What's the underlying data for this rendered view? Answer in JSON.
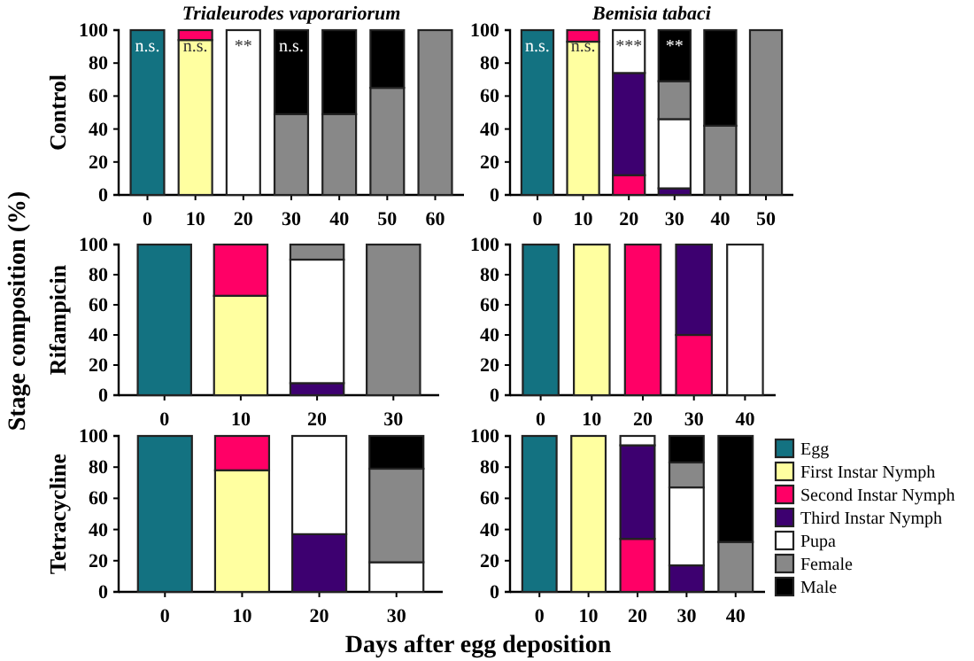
{
  "chart_data": [
    {
      "type": "bar",
      "stacked": true,
      "title": "Trialeurodes vaporariorum",
      "ylabel": "Control",
      "categories": [
        "0",
        "10",
        "20",
        "30",
        "40",
        "50",
        "60"
      ],
      "ylim": [
        0,
        100
      ],
      "yticks": [
        0,
        20,
        40,
        60,
        80,
        100
      ],
      "series": [
        {
          "color": "#137281",
          "values": [
            100,
            0,
            0,
            0,
            0,
            0,
            0
          ]
        },
        {
          "color": "#ffffa0",
          "values": [
            0,
            94,
            0,
            0,
            0,
            0,
            0
          ]
        },
        {
          "color": "#ff0066",
          "values": [
            0,
            6,
            0,
            0,
            0,
            0,
            0
          ]
        },
        {
          "color": "#ffffff",
          "values": [
            0,
            0,
            100,
            0,
            0,
            0,
            0
          ]
        },
        {
          "color": "#888888",
          "values": [
            0,
            0,
            0,
            49,
            49,
            65,
            100
          ]
        },
        {
          "color": "#000000",
          "values": [
            0,
            0,
            0,
            51,
            51,
            35,
            0
          ]
        }
      ],
      "annotations": [
        "n.s.",
        "n.s.",
        "**",
        "n.s."
      ]
    },
    {
      "type": "bar",
      "stacked": true,
      "title": "Bemisia tabaci",
      "categories": [
        "0",
        "10",
        "20",
        "30",
        "40",
        "50"
      ],
      "ylim": [
        0,
        100
      ],
      "yticks": [
        0,
        20,
        40,
        60,
        80,
        100
      ],
      "series": [
        {
          "color": "#137281",
          "values": [
            100,
            0,
            0,
            0,
            0,
            0
          ]
        },
        {
          "color": "#ffffa0",
          "values": [
            0,
            93,
            0,
            0,
            0,
            0
          ]
        },
        {
          "color": "#ff0066",
          "values": [
            0,
            7,
            12,
            0,
            0,
            0
          ]
        },
        {
          "color": "#3d0070",
          "values": [
            0,
            0,
            62,
            4,
            0,
            0
          ]
        },
        {
          "color": "#ffffff",
          "values": [
            0,
            0,
            26,
            42,
            0,
            0
          ]
        },
        {
          "color": "#888888",
          "values": [
            0,
            0,
            0,
            23,
            42,
            100
          ]
        },
        {
          "color": "#000000",
          "values": [
            0,
            0,
            0,
            31,
            58,
            0
          ]
        }
      ],
      "annotations": [
        "n.s.",
        "n.s.",
        "***",
        "**"
      ]
    },
    {
      "type": "bar",
      "stacked": true,
      "ylabel": "Rifampicin",
      "categories": [
        "0",
        "10",
        "20",
        "30"
      ],
      "ylim": [
        0,
        100
      ],
      "yticks": [
        0,
        20,
        40,
        60,
        80,
        100
      ],
      "series": [
        {
          "color": "#137281",
          "values": [
            100,
            0,
            0,
            0
          ]
        },
        {
          "color": "#ffffa0",
          "values": [
            0,
            66,
            0,
            0
          ]
        },
        {
          "color": "#ff0066",
          "values": [
            0,
            34,
            0,
            0
          ]
        },
        {
          "color": "#3d0070",
          "values": [
            0,
            0,
            8,
            0
          ]
        },
        {
          "color": "#ffffff",
          "values": [
            0,
            0,
            82,
            0
          ]
        },
        {
          "color": "#888888",
          "values": [
            0,
            0,
            10,
            100
          ]
        }
      ],
      "annotations": [
        "Stage composition (%)"
      ]
    },
    {
      "type": "bar",
      "stacked": true,
      "categories": [
        "0",
        "10",
        "20",
        "30",
        "40"
      ],
      "ylim": [
        0,
        100
      ],
      "yticks": [
        0,
        20,
        40,
        60,
        80,
        100
      ],
      "series": [
        {
          "color": "#137281",
          "values": [
            100,
            0,
            0,
            0,
            0
          ]
        },
        {
          "color": "#ffffa0",
          "values": [
            0,
            100,
            0,
            0,
            0
          ]
        },
        {
          "color": "#ff0066",
          "values": [
            0,
            0,
            100,
            40,
            0
          ]
        },
        {
          "color": "#3d0070",
          "values": [
            0,
            0,
            0,
            60,
            0
          ]
        },
        {
          "color": "#ffffff",
          "values": [
            0,
            0,
            0,
            0,
            100
          ]
        }
      ]
    },
    {
      "type": "bar",
      "stacked": true,
      "ylabel": "Tetracycline",
      "xlabel": "Days after egg deposition",
      "categories": [
        "0",
        "10",
        "20",
        "30"
      ],
      "ylim": [
        0,
        100
      ],
      "yticks": [
        0,
        20,
        40,
        60,
        80,
        100
      ],
      "series": [
        {
          "color": "#137281",
          "values": [
            100,
            0,
            0,
            0
          ]
        },
        {
          "color": "#ffffa0",
          "values": [
            0,
            78,
            0,
            0
          ]
        },
        {
          "color": "#ff0066",
          "values": [
            0,
            22,
            0,
            0
          ]
        },
        {
          "color": "#3d0070",
          "values": [
            0,
            0,
            37,
            0
          ]
        },
        {
          "color": "#ffffff",
          "values": [
            0,
            0,
            63,
            19
          ]
        },
        {
          "color": "#888888",
          "values": [
            0,
            0,
            0,
            60
          ]
        },
        {
          "color": "#000000",
          "values": [
            0,
            0,
            0,
            21
          ]
        }
      ]
    },
    {
      "type": "bar",
      "stacked": true,
      "legend": "right",
      "categories": [
        "0",
        "10",
        "20",
        "30",
        "40"
      ],
      "ylim": [
        0,
        100
      ],
      "yticks": [
        0,
        20,
        40,
        60,
        80,
        100
      ],
      "series": [
        {
          "name": "Egg",
          "color": "#137281",
          "values": [
            100,
            0,
            0,
            0,
            0
          ]
        },
        {
          "name": "First Instar Nymph",
          "color": "#ffffa0",
          "values": [
            0,
            100,
            0,
            0,
            0
          ]
        },
        {
          "name": "Second Instar Nymph",
          "color": "#ff0066",
          "values": [
            0,
            0,
            34,
            0,
            0
          ]
        },
        {
          "name": "Third Instar Nymph",
          "color": "#3d0070",
          "values": [
            0,
            0,
            60,
            17,
            0
          ]
        },
        {
          "name": "Pupa",
          "color": "#ffffff",
          "values": [
            0,
            0,
            6,
            50,
            0
          ]
        },
        {
          "name": "Female",
          "color": "#888888",
          "values": [
            0,
            0,
            0,
            16,
            32
          ]
        },
        {
          "name": "Male",
          "color": "#000000",
          "values": [
            0,
            0,
            0,
            17,
            68
          ]
        }
      ]
    }
  ]
}
